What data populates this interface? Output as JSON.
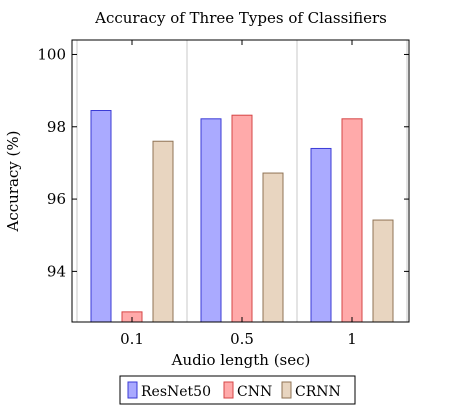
{
  "chart_data": {
    "type": "bar",
    "title": "Accuracy of Three Types of Classifiers",
    "xlabel": "Audio length (sec)",
    "ylabel": "Accuracy (%)",
    "categories": [
      "0.1",
      "0.5",
      "1"
    ],
    "ylim": [
      92.6,
      100.4
    ],
    "yticks": [
      "94",
      "96",
      "98",
      "100"
    ],
    "grid": "vertical",
    "legend_position": "bottom-center",
    "series": [
      {
        "name": "ResNet50",
        "values": [
          98.45,
          98.22,
          97.4
        ],
        "fill": "#aaaaff",
        "stroke": "#3b3bd6"
      },
      {
        "name": "CNN",
        "values": [
          92.88,
          98.32,
          98.22
        ],
        "fill": "#ffaaaa",
        "stroke": "#d64545"
      },
      {
        "name": "CRNN",
        "values": [
          97.6,
          96.72,
          95.42
        ],
        "fill": "#e8d5c0",
        "stroke": "#8f7355"
      }
    ]
  }
}
